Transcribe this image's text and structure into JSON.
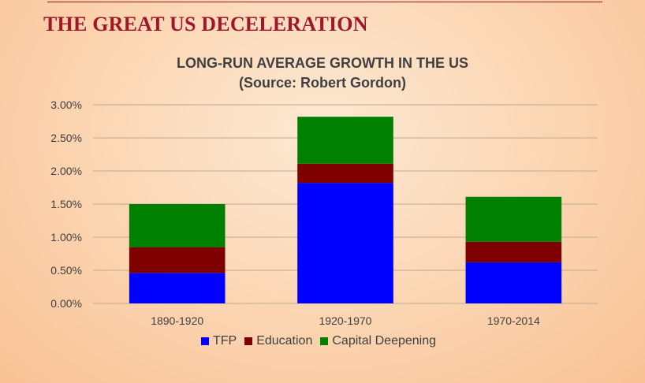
{
  "slide": {
    "title": "THE GREAT US DECELERATION"
  },
  "colors": {
    "brand": "#a0172a",
    "text": "#404040",
    "grid": "#bfa98f"
  },
  "chart_data": {
    "type": "bar",
    "stacked": true,
    "title": "LONG-RUN AVERAGE GROWTH IN THE US",
    "subtitle": "(Source: Robert Gordon)",
    "categories": [
      "1890-1920",
      "1920-1970",
      "1970-2014"
    ],
    "series": [
      {
        "name": "TFP",
        "color": "#0000ff",
        "values": [
          0.46,
          1.82,
          0.62
        ]
      },
      {
        "name": "Education",
        "color": "#7f0000",
        "values": [
          0.39,
          0.29,
          0.31
        ]
      },
      {
        "name": "Capital Deepening",
        "color": "#008000",
        "values": [
          0.65,
          0.71,
          0.68
        ]
      }
    ],
    "ylim": [
      0,
      3.0
    ],
    "yticks": [
      0,
      0.5,
      1.0,
      1.5,
      2.0,
      2.5,
      3.0
    ],
    "ytick_labels": [
      "0.00%",
      "0.50%",
      "1.00%",
      "1.50%",
      "2.00%",
      "2.50%",
      "3.00%"
    ],
    "grid": true,
    "legend_position": "bottom"
  }
}
